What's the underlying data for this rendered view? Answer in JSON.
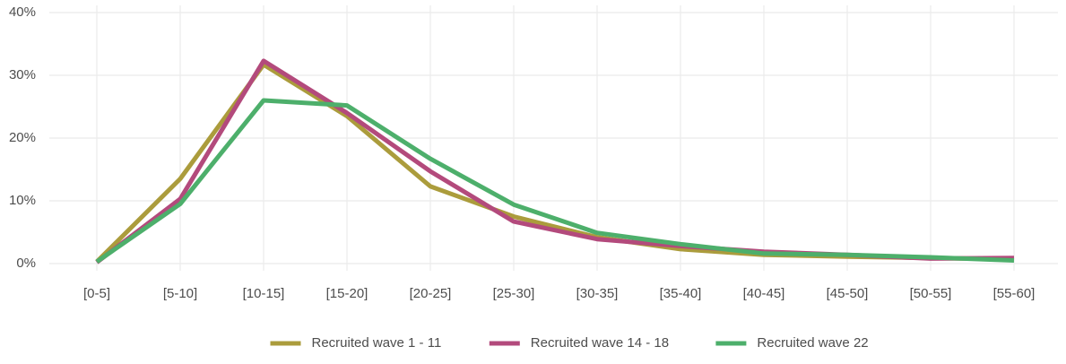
{
  "chart_data": {
    "type": "line",
    "categories": [
      "[0-5]",
      "[5-10]",
      "[10-15]",
      "[15-20]",
      "[20-25]",
      "[25-30]",
      "[30-35]",
      "[35-40]",
      "[40-45]",
      "[45-50]",
      "[50-55]",
      "[55-60]"
    ],
    "series": [
      {
        "name": "Recruited wave 1 - 11",
        "color": "#ab9c3c",
        "values": [
          0.3,
          13.5,
          31.7,
          23.5,
          12.3,
          7.5,
          4.2,
          2.3,
          1.4,
          1.1,
          0.9,
          0.7
        ]
      },
      {
        "name": "Recruited wave 14 - 18",
        "color": "#b34a7c",
        "values": [
          0.2,
          10.3,
          32.3,
          24.0,
          14.7,
          6.7,
          3.9,
          2.8,
          1.9,
          1.4,
          0.8,
          0.9
        ]
      },
      {
        "name": "Recruited wave 22",
        "color": "#4daf6b",
        "values": [
          0.3,
          9.5,
          26.0,
          25.2,
          16.7,
          9.4,
          4.9,
          3.1,
          1.6,
          1.4,
          1.0,
          0.5
        ]
      }
    ],
    "ylim": [
      0,
      40
    ],
    "yticks": [
      {
        "value": 0,
        "label": "0%"
      },
      {
        "value": 10,
        "label": "10%"
      },
      {
        "value": 20,
        "label": "20%"
      },
      {
        "value": 30,
        "label": "30%"
      },
      {
        "value": 40,
        "label": "40%"
      }
    ],
    "grid": true,
    "legend": "bottom"
  }
}
